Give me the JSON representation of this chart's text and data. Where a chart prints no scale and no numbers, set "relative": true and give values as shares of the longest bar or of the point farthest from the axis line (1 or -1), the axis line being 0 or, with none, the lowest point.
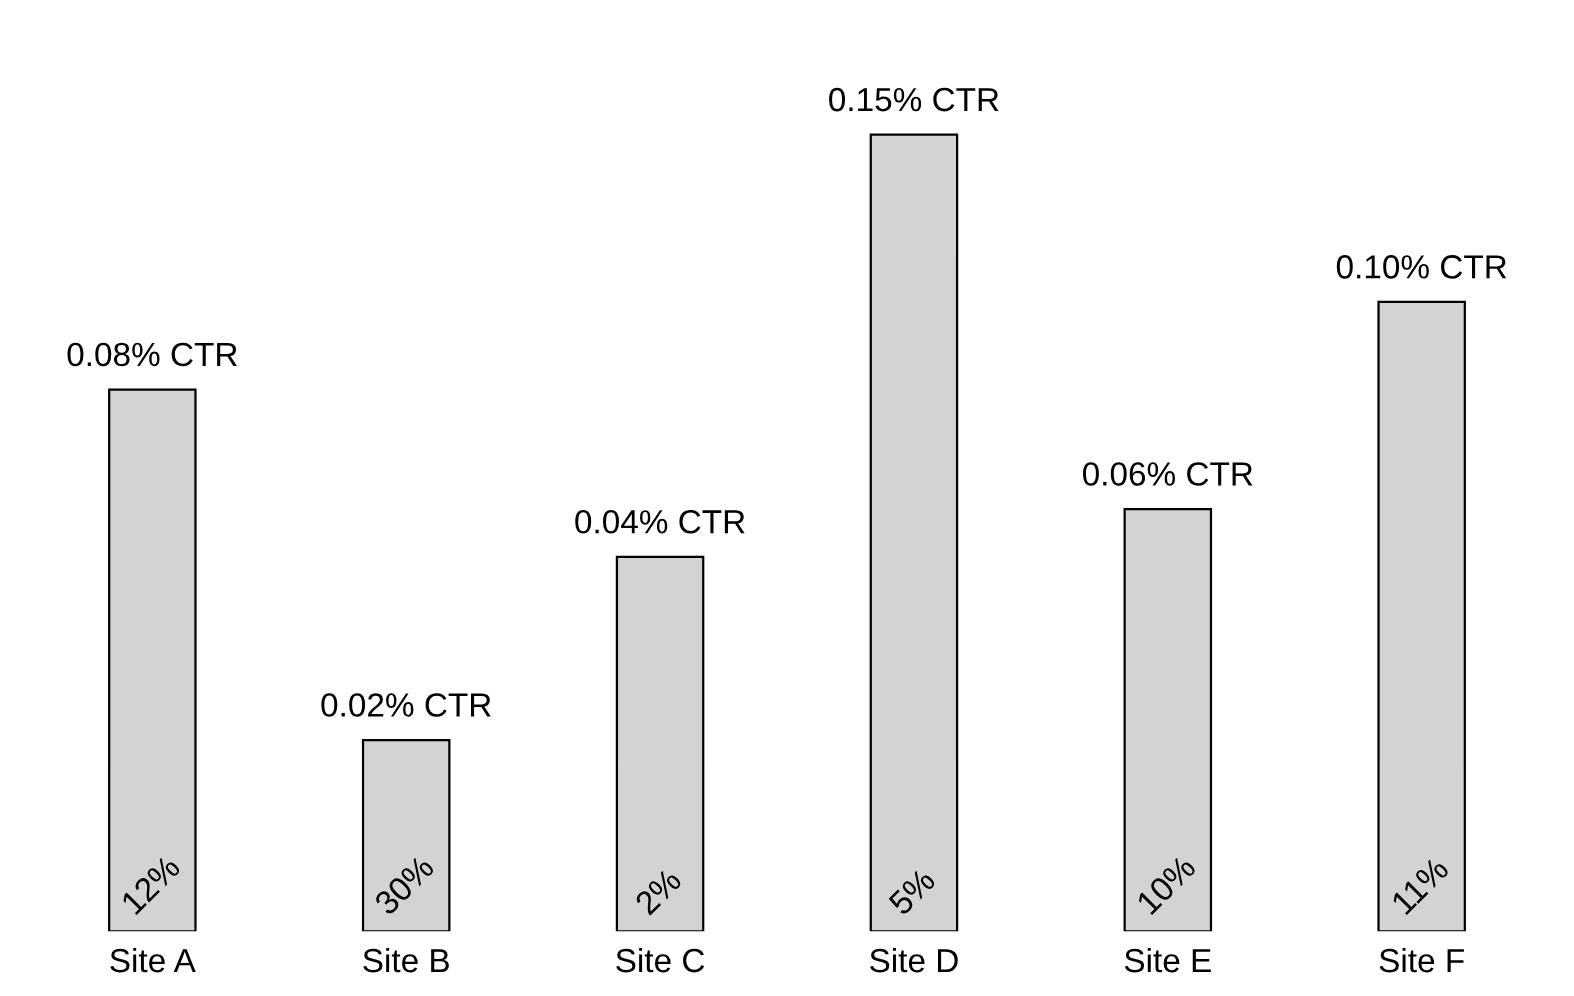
{
  "chart_data": {
    "type": "bar",
    "relative": true,
    "categories": [
      "Site A",
      "Site B",
      "Site C",
      "Site D",
      "Site E",
      "Site F"
    ],
    "values": [
      0.68,
      0.24,
      0.47,
      1,
      0.53,
      0.79
    ],
    "color": "#d3d3d3",
    "annotations": [
      {
        "text": "0.08% CTR",
        "x": "Site A",
        "y": 0.68
      },
      {
        "text": "0.02% CTR",
        "x": "Site B",
        "y": 0.24
      },
      {
        "text": "0.04% CTR",
        "x": "Site C",
        "y": 0.47
      },
      {
        "text": "0.15% CTR",
        "x": "Site D",
        "y": 1
      },
      {
        "text": "0.06% CTR",
        "x": "Site E",
        "y": 0.53
      },
      {
        "text": "0.10% CTR",
        "x": "Site F",
        "y": 0.79
      },
      {
        "text": "12%",
        "x": "Site A",
        "y": 0
      },
      {
        "text": "30%",
        "x": "Site B",
        "y": 0
      },
      {
        "text": "2%",
        "x": "Site C",
        "y": 0
      },
      {
        "text": "5%",
        "x": "Site D",
        "y": 0
      },
      {
        "text": "10%",
        "x": "Site E",
        "y": 0
      },
      {
        "text": "11%",
        "x": "Site F",
        "y": 0
      }
    ],
    "grid": false,
    "legend": false
  }
}
